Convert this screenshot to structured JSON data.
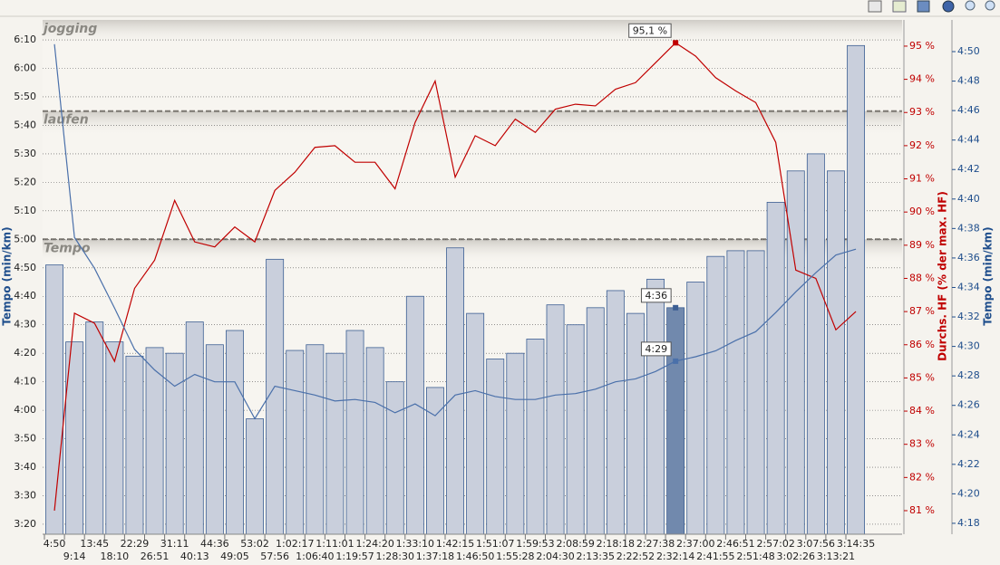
{
  "chart_data": {
    "type": "bar-line",
    "y_title": "Tempo (min/km)",
    "y2_title": "Durchs. HF (% der max. HF)",
    "y3_title": "Tempo (min/km)",
    "categories": [
      "4:50",
      "9:14",
      "13:45",
      "18:10",
      "22:29",
      "26:51",
      "31:11",
      "40:13",
      "44:36",
      "49:05",
      "53:02",
      "57:56",
      "1:02:17",
      "1:06:40",
      "1:11:01",
      "1:19:57",
      "1:24:20",
      "1:28:30",
      "1:33:10",
      "1:37:18",
      "1:42:15",
      "1:46:50",
      "1:51:07",
      "1:55:28",
      "1:59:53",
      "2:04:30",
      "2:08:59",
      "2:13:35",
      "2:18:18",
      "2:22:52",
      "2:27:38",
      "2:32:14",
      "2:37:00",
      "2:41:55",
      "2:46:51",
      "2:51:48",
      "2:57:02",
      "3:02:26",
      "3:07:56",
      "3:13:21",
      "3:14:35"
    ],
    "ylim": [
      196.5,
      377
    ],
    "yticks": [
      {
        "value": 200,
        "label": "3:20"
      },
      {
        "value": 210,
        "label": "3:30"
      },
      {
        "value": 220,
        "label": "3:40"
      },
      {
        "value": 230,
        "label": "3:50"
      },
      {
        "value": 240,
        "label": "4:00"
      },
      {
        "value": 250,
        "label": "4:10"
      },
      {
        "value": 260,
        "label": "4:20"
      },
      {
        "value": 270,
        "label": "4:30"
      },
      {
        "value": 280,
        "label": "4:40"
      },
      {
        "value": 290,
        "label": "4:50"
      },
      {
        "value": 300,
        "label": "5:00"
      },
      {
        "value": 310,
        "label": "5:10"
      },
      {
        "value": 320,
        "label": "5:20"
      },
      {
        "value": 330,
        "label": "5:30"
      },
      {
        "value": 340,
        "label": "5:40"
      },
      {
        "value": 350,
        "label": "5:50"
      },
      {
        "value": 360,
        "label": "6:00"
      },
      {
        "value": 370,
        "label": "6:10"
      }
    ],
    "y2lim": [
      80.29,
      95.79
    ],
    "y2ticks": [
      {
        "value": 81,
        "label": "81 %"
      },
      {
        "value": 82,
        "label": "82 %"
      },
      {
        "value": 83,
        "label": "83 %"
      },
      {
        "value": 84,
        "label": "84 %"
      },
      {
        "value": 85,
        "label": "85 %"
      },
      {
        "value": 86,
        "label": "86 %"
      },
      {
        "value": 87,
        "label": "87 %"
      },
      {
        "value": 88,
        "label": "88 %"
      },
      {
        "value": 89,
        "label": "89 %"
      },
      {
        "value": 90,
        "label": "90 %"
      },
      {
        "value": 91,
        "label": "91 %"
      },
      {
        "value": 92,
        "label": "92 %"
      },
      {
        "value": 93,
        "label": "93 %"
      },
      {
        "value": 94,
        "label": "94 %"
      },
      {
        "value": 95,
        "label": "95 %"
      }
    ],
    "y3lim": [
      257.26,
      292.15
    ],
    "y3ticks": [
      {
        "value": 258,
        "label": "4:18"
      },
      {
        "value": 260,
        "label": "4:20"
      },
      {
        "value": 262,
        "label": "4:22"
      },
      {
        "value": 264,
        "label": "4:24"
      },
      {
        "value": 266,
        "label": "4:26"
      },
      {
        "value": 268,
        "label": "4:28"
      },
      {
        "value": 270,
        "label": "4:30"
      },
      {
        "value": 272,
        "label": "4:32"
      },
      {
        "value": 274,
        "label": "4:34"
      },
      {
        "value": 276,
        "label": "4:36"
      },
      {
        "value": 278,
        "label": "4:38"
      },
      {
        "value": 280,
        "label": "4:40"
      },
      {
        "value": 282,
        "label": "4:42"
      },
      {
        "value": 284,
        "label": "4:44"
      },
      {
        "value": 286,
        "label": "4:46"
      },
      {
        "value": 288,
        "label": "4:48"
      },
      {
        "value": 290,
        "label": "4:50"
      }
    ],
    "grid": true,
    "zones": [
      {
        "label": "jogging"
      },
      {
        "label": "laufen",
        "value": 345
      },
      {
        "label": "Tempo",
        "value": 300
      }
    ],
    "series": [
      {
        "type": "bar",
        "axis": "y",
        "color": "#c9cfdc",
        "edge": "#3d5f93",
        "highlight_color": "#7189ad",
        "values": [
          291,
          264,
          271,
          264,
          259,
          262,
          260,
          271,
          263,
          268,
          237,
          293,
          261,
          263,
          260,
          268,
          262,
          250,
          280,
          248,
          297,
          274,
          258,
          260,
          265,
          277,
          270,
          276,
          282,
          274,
          286,
          276,
          285,
          294,
          296,
          296,
          313,
          324,
          330,
          324,
          368
        ],
        "value_labels": [
          null,
          null,
          null,
          null,
          null,
          null,
          null,
          null,
          null,
          null,
          null,
          null,
          null,
          null,
          null,
          null,
          null,
          null,
          null,
          null,
          null,
          null,
          null,
          null,
          null,
          null,
          null,
          null,
          null,
          null,
          null,
          "4:36",
          null,
          null,
          null,
          null,
          null,
          null,
          null,
          null,
          null
        ]
      },
      {
        "type": "line",
        "axis": "y2",
        "color": "#c00000",
        "values": [
          81.0,
          86.95,
          86.65,
          85.5,
          87.7,
          88.55,
          90.35,
          89.1,
          88.95,
          89.55,
          89.1,
          90.65,
          91.2,
          91.95,
          92.0,
          91.5,
          91.5,
          90.7,
          92.7,
          93.95,
          91.05,
          92.3,
          92.0,
          92.8,
          92.4,
          93.1,
          93.25,
          93.2,
          93.7,
          93.9,
          94.5,
          95.1,
          94.7,
          94.05,
          93.65,
          93.3,
          92.1,
          88.25,
          88.0,
          86.45,
          87.0
        ],
        "value_labels": [
          null,
          null,
          null,
          null,
          null,
          null,
          null,
          null,
          null,
          null,
          null,
          null,
          null,
          null,
          null,
          null,
          null,
          null,
          null,
          null,
          null,
          null,
          null,
          null,
          null,
          null,
          null,
          null,
          null,
          null,
          null,
          "95,1 %",
          null,
          null,
          null,
          null,
          null,
          null,
          null,
          null,
          null
        ]
      },
      {
        "type": "line",
        "axis": "y3",
        "color": "#4a70aa",
        "values": [
          290.5,
          277.4,
          275.3,
          272.6,
          269.8,
          268.4,
          267.3,
          268.1,
          267.6,
          267.6,
          265.1,
          267.3,
          267.0,
          266.7,
          266.3,
          266.4,
          266.2,
          265.5,
          266.1,
          265.3,
          266.7,
          267.0,
          266.6,
          266.4,
          266.4,
          266.7,
          266.8,
          267.1,
          267.6,
          267.8,
          268.3,
          269,
          269.3,
          269.7,
          270.4,
          271.0,
          272.3,
          273.7,
          275.0,
          276.2,
          276.6
        ],
        "value_labels": [
          null,
          null,
          null,
          null,
          null,
          null,
          null,
          null,
          null,
          null,
          null,
          null,
          null,
          null,
          null,
          null,
          null,
          null,
          null,
          null,
          null,
          null,
          null,
          null,
          null,
          null,
          null,
          null,
          null,
          null,
          null,
          "4:29",
          null,
          null,
          null,
          null,
          null,
          null,
          null,
          null,
          null
        ]
      }
    ]
  }
}
